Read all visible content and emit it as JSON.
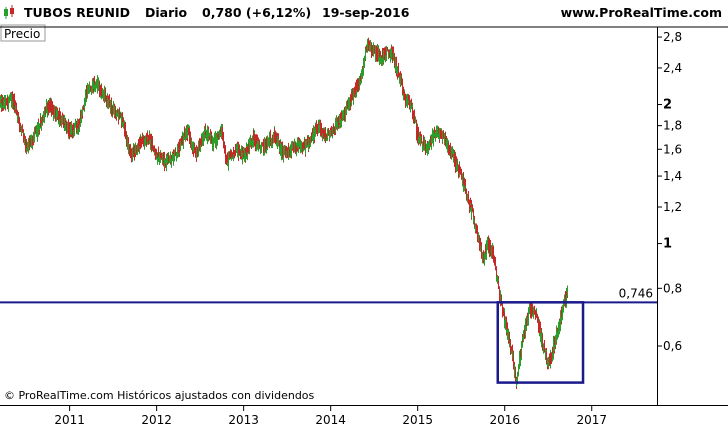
{
  "header": {
    "symbol": "TUBOS REUNID",
    "period": "Diario",
    "quote": "0,780 (+6,12%)",
    "date": "19-sep-2016",
    "site": "www.ProRealTime.com"
  },
  "panel_label": "Precio",
  "footer_text": "© ProRealTime.com  Históricos ajustados con dividendos",
  "icon": "candlestick-icon",
  "colors": {
    "up": "#2a9d2a",
    "down": "#c62828",
    "support_line": "#1a1a8c",
    "box": "#1a1a8c",
    "axis": "#000000"
  },
  "chart_data": {
    "type": "candlestick",
    "y_scale": "log",
    "ylim": [
      0.47,
      2.9
    ],
    "y_ticks": [
      {
        "value": 2.8,
        "label": "2,8",
        "bold": false
      },
      {
        "value": 2.4,
        "label": "2,4",
        "bold": false
      },
      {
        "value": 2.0,
        "label": "2",
        "bold": true
      },
      {
        "value": 1.8,
        "label": "1,8",
        "bold": false
      },
      {
        "value": 1.6,
        "label": "1,6",
        "bold": false
      },
      {
        "value": 1.4,
        "label": "1,4",
        "bold": false
      },
      {
        "value": 1.2,
        "label": "1,2",
        "bold": false
      },
      {
        "value": 1.0,
        "label": "1",
        "bold": true
      },
      {
        "value": 0.8,
        "label": "0,8",
        "bold": false
      },
      {
        "value": 0.6,
        "label": "0,6",
        "bold": false
      }
    ],
    "xlim": [
      2010.2,
      2017.75
    ],
    "x_ticks": [
      {
        "value": 2011.0,
        "label": "2011"
      },
      {
        "value": 2012.0,
        "label": "2012"
      },
      {
        "value": 2013.0,
        "label": "2013"
      },
      {
        "value": 2014.0,
        "label": "2014"
      },
      {
        "value": 2015.0,
        "label": "2015"
      },
      {
        "value": 2016.0,
        "label": "2016"
      },
      {
        "value": 2017.0,
        "label": "2017"
      }
    ],
    "price_path": [
      [
        2010.2,
        2.0
      ],
      [
        2010.35,
        2.05
      ],
      [
        2010.5,
        1.6
      ],
      [
        2010.6,
        1.72
      ],
      [
        2010.75,
        2.0
      ],
      [
        2010.9,
        1.85
      ],
      [
        2011.0,
        1.75
      ],
      [
        2011.1,
        1.8
      ],
      [
        2011.2,
        2.15
      ],
      [
        2011.3,
        2.25
      ],
      [
        2011.45,
        2.0
      ],
      [
        2011.6,
        1.85
      ],
      [
        2011.7,
        1.55
      ],
      [
        2011.8,
        1.65
      ],
      [
        2011.9,
        1.7
      ],
      [
        2012.0,
        1.55
      ],
      [
        2012.1,
        1.5
      ],
      [
        2012.2,
        1.55
      ],
      [
        2012.35,
        1.75
      ],
      [
        2012.45,
        1.55
      ],
      [
        2012.55,
        1.75
      ],
      [
        2012.65,
        1.65
      ],
      [
        2012.75,
        1.75
      ],
      [
        2012.8,
        1.5
      ],
      [
        2012.9,
        1.6
      ],
      [
        2013.0,
        1.55
      ],
      [
        2013.1,
        1.7
      ],
      [
        2013.2,
        1.6
      ],
      [
        2013.35,
        1.72
      ],
      [
        2013.45,
        1.55
      ],
      [
        2013.6,
        1.62
      ],
      [
        2013.7,
        1.62
      ],
      [
        2013.85,
        1.78
      ],
      [
        2013.95,
        1.7
      ],
      [
        2014.05,
        1.8
      ],
      [
        2014.15,
        1.9
      ],
      [
        2014.25,
        2.1
      ],
      [
        2014.35,
        2.3
      ],
      [
        2014.42,
        2.75
      ],
      [
        2014.5,
        2.6
      ],
      [
        2014.58,
        2.55
      ],
      [
        2014.7,
        2.6
      ],
      [
        2014.78,
        2.3
      ],
      [
        2014.85,
        2.05
      ],
      [
        2014.92,
        2.0
      ],
      [
        2015.0,
        1.7
      ],
      [
        2015.1,
        1.6
      ],
      [
        2015.2,
        1.75
      ],
      [
        2015.3,
        1.7
      ],
      [
        2015.4,
        1.55
      ],
      [
        2015.5,
        1.4
      ],
      [
        2015.6,
        1.2
      ],
      [
        2015.68,
        1.05
      ],
      [
        2015.75,
        0.92
      ],
      [
        2015.8,
        1.0
      ],
      [
        2015.86,
        0.95
      ],
      [
        2015.92,
        0.82
      ],
      [
        2015.97,
        0.72
      ],
      [
        2016.03,
        0.64
      ],
      [
        2016.1,
        0.55
      ],
      [
        2016.13,
        0.5
      ],
      [
        2016.2,
        0.62
      ],
      [
        2016.28,
        0.72
      ],
      [
        2016.36,
        0.7
      ],
      [
        2016.44,
        0.6
      ],
      [
        2016.5,
        0.55
      ],
      [
        2016.56,
        0.6
      ],
      [
        2016.62,
        0.66
      ],
      [
        2016.68,
        0.75
      ],
      [
        2016.72,
        0.78
      ]
    ],
    "annotations": {
      "support_level": {
        "value": 0.746,
        "label": "0,746"
      },
      "highlight_box": {
        "x0": 2015.92,
        "x1": 2016.9,
        "y0": 0.5,
        "y1": 0.746
      }
    }
  }
}
